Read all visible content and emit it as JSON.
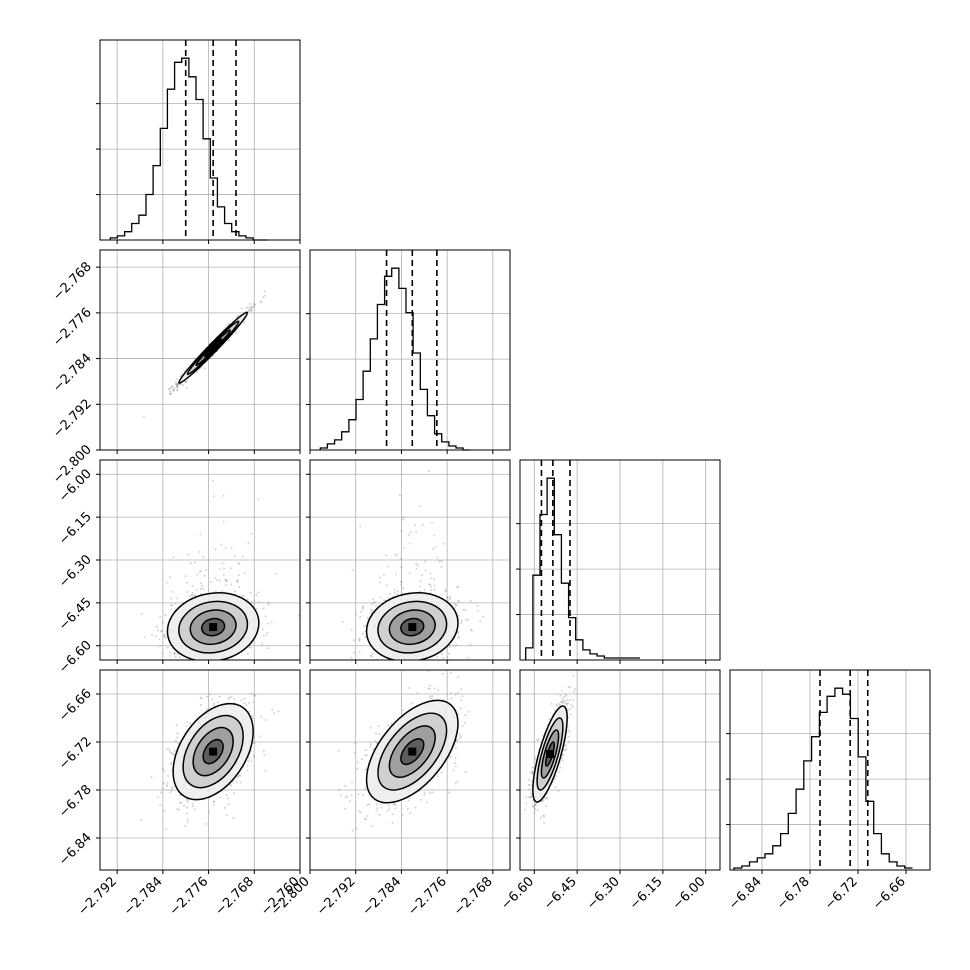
{
  "chart_data": {
    "type": "corner",
    "parameters": 4,
    "grid": true,
    "colors": {
      "line": "#000000",
      "grid": "#b0b0b0",
      "scatter": "#808080",
      "background": "#ffffff"
    },
    "axes": [
      {
        "range": [
          -2.795,
          -2.76
        ],
        "ticks": [
          "-2.792",
          "-2.784",
          "-2.776",
          "-2.768",
          "-2.760"
        ],
        "tick_values": [
          -2.792,
          -2.784,
          -2.776,
          -2.768,
          -2.76
        ]
      },
      {
        "range": [
          -2.8,
          -2.765
        ],
        "ticks": [
          "-2.800",
          "-2.792",
          "-2.784",
          "-2.776",
          "-2.768"
        ],
        "tick_values": [
          -2.8,
          -2.792,
          -2.784,
          -2.776,
          -2.768
        ]
      },
      {
        "range": [
          -6.65,
          -5.95
        ],
        "ticks": [
          "-6.60",
          "-6.45",
          "-6.30",
          "-6.15",
          "-6.00"
        ],
        "tick_values": [
          -6.6,
          -6.45,
          -6.3,
          -6.15,
          -6.0
        ]
      },
      {
        "range": [
          -6.88,
          -6.63
        ],
        "ticks": [
          "-6.84",
          "-6.78",
          "-6.72",
          "-6.66"
        ],
        "tick_values": [
          -6.84,
          -6.78,
          -6.72,
          -6.66
        ]
      }
    ],
    "histograms": [
      {
        "param": 0,
        "bin_edges_start": -2.7932,
        "bin_width": 0.00125,
        "counts": [
          1,
          2,
          4,
          8,
          12,
          22,
          36,
          54,
          73,
          86,
          88,
          79,
          68,
          49,
          30,
          16,
          8,
          4,
          2,
          1,
          0,
          0
        ],
        "quantiles": [
          -2.78,
          -2.7752,
          -2.7712
        ]
      },
      {
        "param": 1,
        "bin_edges_start": -2.7982,
        "bin_width": 0.00125,
        "counts": [
          1,
          3,
          5,
          9,
          15,
          25,
          39,
          55,
          72,
          86,
          90,
          80,
          68,
          48,
          30,
          17,
          8,
          4,
          2,
          1,
          0
        ],
        "quantiles": [
          -2.7866,
          -2.7821,
          -2.7778
        ]
      },
      {
        "param": 2,
        "bin_edges_start": -6.63,
        "bin_width": 0.025,
        "counts": [
          6,
          42,
          72,
          90,
          62,
          38,
          21,
          10,
          5,
          3,
          2,
          1,
          1,
          1,
          1,
          1
        ],
        "quantiles": [
          -6.575,
          -6.535,
          -6.475
        ]
      },
      {
        "param": 3,
        "bin_edges_start": -6.875,
        "bin_width": 0.0097,
        "counts": [
          1,
          2,
          4,
          6,
          8,
          12,
          18,
          28,
          40,
          54,
          66,
          78,
          86,
          90,
          87,
          75,
          56,
          34,
          18,
          8,
          4,
          2,
          1
        ],
        "quantiles": [
          -6.7675,
          -6.7298,
          -6.7078
        ]
      }
    ],
    "pairs": [
      {
        "x": 0,
        "y": 1,
        "mean": [
          -2.7752,
          -2.7821
        ],
        "sd": [
          0.003,
          0.0031
        ],
        "rho": 0.985
      },
      {
        "x": 0,
        "y": 2,
        "mean": [
          -2.7752,
          -6.535
        ],
        "sd": [
          0.004,
          0.06
        ],
        "rho": 0.12
      },
      {
        "x": 1,
        "y": 2,
        "mean": [
          -2.7821,
          -6.535
        ],
        "sd": [
          0.004,
          0.06
        ],
        "rho": 0.12
      },
      {
        "x": 0,
        "y": 3,
        "mean": [
          -2.7752,
          -6.732
        ],
        "sd": [
          0.0035,
          0.03
        ],
        "rho": 0.42
      },
      {
        "x": 1,
        "y": 3,
        "mean": [
          -2.7821,
          -6.732
        ],
        "sd": [
          0.004,
          0.032
        ],
        "rho": 0.55
      },
      {
        "x": 2,
        "y": 3,
        "mean": [
          -6.545,
          -6.735
        ],
        "sd": [
          0.03,
          0.03
        ],
        "rho": 0.75
      }
    ],
    "contour_levels_sigma": [
      0.5,
      1.0,
      1.5,
      2.0
    ]
  }
}
